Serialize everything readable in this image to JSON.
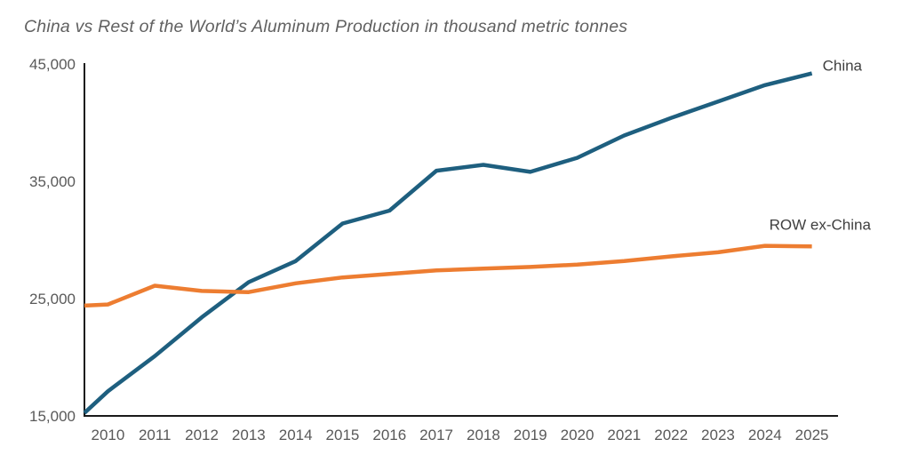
{
  "title": "China vs Rest of the World’s Aluminum Production in thousand metric tonnes",
  "chart_data": {
    "type": "line",
    "title": "China vs Rest of the World’s Aluminum Production in thousand metric tonnes",
    "xlabel": "",
    "ylabel": "",
    "unit": "thousand metric tonnes",
    "categories": [
      "2010",
      "2011",
      "2012",
      "2013",
      "2014",
      "2015",
      "2016",
      "2017",
      "2018",
      "2019",
      "2020",
      "2021",
      "2022",
      "2023",
      "2024",
      "2025"
    ],
    "series": [
      {
        "name": "China",
        "end_label": "China",
        "color": "#1e5f7f",
        "values": [
          17100,
          20100,
          23400,
          26400,
          28200,
          31400,
          32500,
          35900,
          36400,
          35800,
          37000,
          38900,
          40400,
          41800,
          43200,
          44200
        ],
        "value_at_left_axis": 15250,
        "label_dx": 12,
        "label_dy": -3,
        "label_anchor": "start"
      },
      {
        "name": "ROW ex-China",
        "end_label": "ROW ex-China",
        "color": "#ed7d31",
        "values": [
          24500,
          26100,
          25650,
          25550,
          26300,
          26800,
          27100,
          27400,
          27550,
          27700,
          27900,
          28200,
          28600,
          28950,
          29500,
          29450
        ],
        "value_at_left_axis": 24400,
        "label_dx": -48,
        "label_dy": -19,
        "label_anchor": "start"
      }
    ],
    "ylim": [
      15000,
      45000
    ],
    "yticks": [
      {
        "value": 15000,
        "label": "15,000"
      },
      {
        "value": 25000,
        "label": "25,000"
      },
      {
        "value": 35000,
        "label": "35,000"
      },
      {
        "value": 45000,
        "label": "45,000"
      }
    ],
    "grid": false,
    "legend_position": "line-end-labels",
    "colors": {
      "axis": "#1a1a1a",
      "tick_label": "#595959",
      "series_label": "#3f3f3f",
      "title": "#616161",
      "background": "#ffffff"
    }
  }
}
